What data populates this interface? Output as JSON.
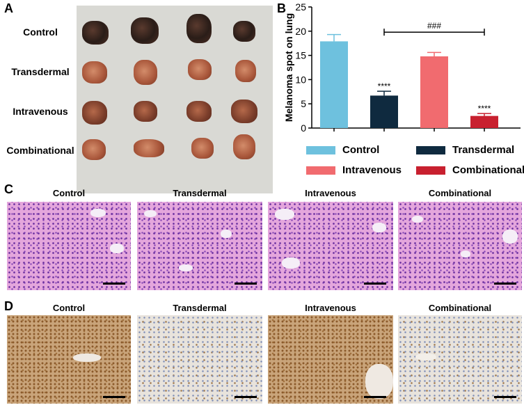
{
  "panel_letters": {
    "a": "A",
    "b": "B",
    "c": "C",
    "d": "D"
  },
  "groups": [
    "Control",
    "Transdermal",
    "Intravenous",
    "Combinational"
  ],
  "chart_data": {
    "type": "bar",
    "categories": [
      "Control",
      "Transdermal",
      "Intravenous",
      "Combinational"
    ],
    "values": [
      17.9,
      6.7,
      14.8,
      2.5
    ],
    "errors": [
      1.4,
      0.9,
      0.8,
      0.5
    ],
    "colors": [
      "#6ec1de",
      "#0f2a3f",
      "#f16b6f",
      "#c8202f"
    ],
    "significance": [
      "",
      "****",
      "",
      "****"
    ],
    "bracket": {
      "from": "Transdermal",
      "to": "Combinational",
      "label": "###"
    },
    "ylabel": "Melanoma spot on lung",
    "xlabel": "",
    "ylim": [
      0,
      25
    ],
    "yticks": [
      "0",
      "5",
      "10",
      "15",
      "20",
      "25"
    ],
    "legend": "bottom",
    "grid": false
  }
}
